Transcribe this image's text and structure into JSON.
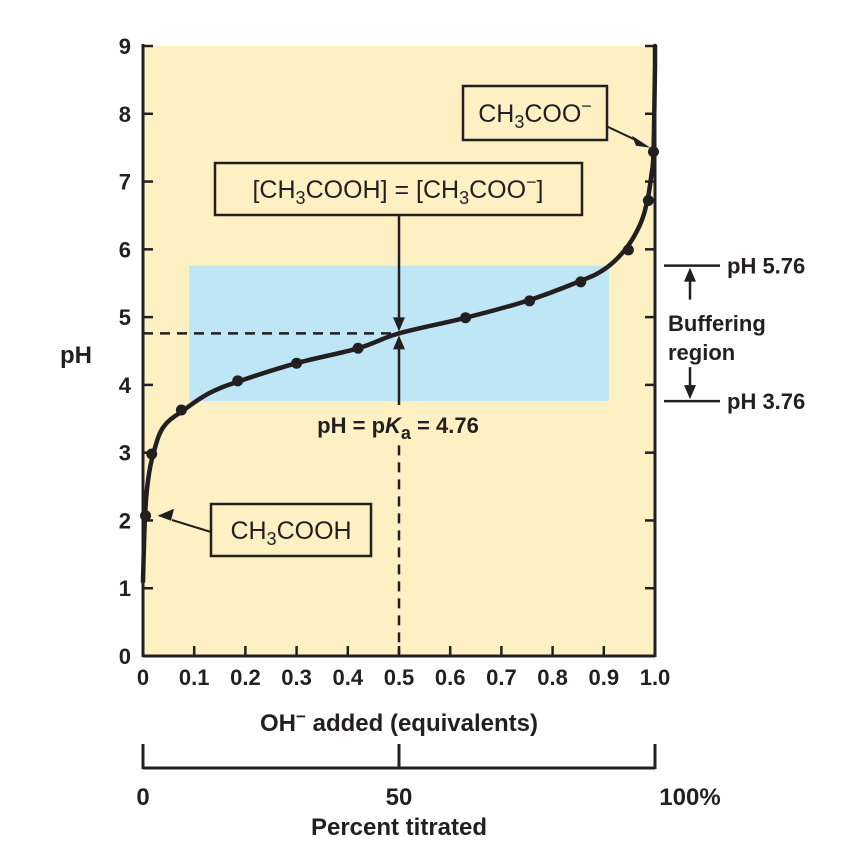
{
  "chart_data": {
    "type": "line",
    "ylabel": "pH",
    "xlabel": "OH⁻ added (equivalents)",
    "secondary_axis": {
      "label": "Percent titrated",
      "ticks": [
        "0",
        "50",
        "100%"
      ]
    },
    "xlim": [
      0,
      1.0
    ],
    "ylim": [
      0,
      9
    ],
    "x_ticks": [
      "0",
      "0.1",
      "0.2",
      "0.3",
      "0.4",
      "0.5",
      "0.6",
      "0.7",
      "0.8",
      "0.9",
      "1.0"
    ],
    "y_ticks": [
      "0",
      "1",
      "2",
      "3",
      "4",
      "5",
      "6",
      "7",
      "8",
      "9"
    ],
    "grid": false,
    "series": [
      {
        "x": [
          0.0,
          0.004,
          0.01,
          0.02,
          0.04,
          0.08,
          0.13,
          0.19,
          0.3,
          0.42,
          0.5,
          0.63,
          0.75,
          0.85,
          0.9,
          0.94,
          0.97,
          0.985,
          0.993,
          0.997,
          1.0
        ],
        "y": [
          1.1,
          2.08,
          2.6,
          2.98,
          3.38,
          3.63,
          3.88,
          4.06,
          4.32,
          4.54,
          4.76,
          4.99,
          5.24,
          5.52,
          5.7,
          5.98,
          6.35,
          6.72,
          7.1,
          7.43,
          8.7
        ],
        "points": [
          {
            "x": 0.005,
            "y": 2.07
          },
          {
            "x": 0.017,
            "y": 2.98
          },
          {
            "x": 0.075,
            "y": 3.63
          },
          {
            "x": 0.185,
            "y": 4.06
          },
          {
            "x": 0.3,
            "y": 4.32
          },
          {
            "x": 0.42,
            "y": 4.54
          },
          {
            "x": 0.63,
            "y": 4.99
          },
          {
            "x": 0.755,
            "y": 5.24
          },
          {
            "x": 0.855,
            "y": 5.52
          },
          {
            "x": 0.948,
            "y": 5.99
          },
          {
            "x": 0.987,
            "y": 6.72
          },
          {
            "x": 0.997,
            "y": 7.44
          }
        ]
      }
    ],
    "buffer_region": {
      "x_from": 0.09,
      "x_to": 0.91,
      "y_low": 3.76,
      "y_high": 5.76,
      "color": "#bfe6f5"
    },
    "pka_point": {
      "x": 0.5,
      "y": 4.76
    },
    "annotations": {
      "pka_text_prefix": "pH = p",
      "pka_text_k": "K",
      "pka_text_sub": "a",
      "pka_text_suffix": " = 4.76",
      "ph_high": "pH 5.76",
      "ph_low": "pH 3.76",
      "buffer_line1": "Buffering",
      "buffer_line2": "region",
      "box_top_right": {
        "pre": "CH",
        "sub": "3",
        "post": "COO",
        "sup": "−"
      },
      "box_middle": {
        "pre": "[CH",
        "sub": "3",
        "mid": "COOH] = [CH",
        "sub2": "3",
        "post": "COO",
        "sup": "−",
        "end": "]"
      },
      "box_bottom": {
        "pre": "CH",
        "sub": "3",
        "post": "COOH"
      }
    },
    "colors": {
      "plot_bg": "#fdf1c4",
      "buffer": "#bfe6f5",
      "ink": "#231f20",
      "box_bg": "#fdf1c4"
    }
  }
}
